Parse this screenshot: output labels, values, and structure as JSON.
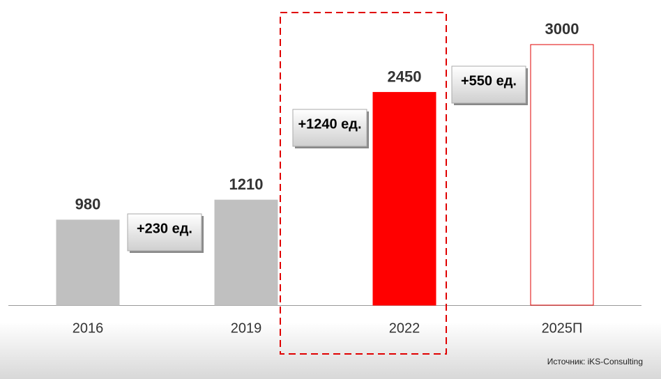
{
  "chart_data": {
    "type": "bar",
    "categories": [
      "2016",
      "2019",
      "2022",
      "2025П"
    ],
    "values": [
      980,
      1210,
      2450,
      3000
    ],
    "colors": [
      "#c0c0c0",
      "#c0c0c0",
      "#ff0000",
      "#ffffff"
    ],
    "edgecolors": [
      "#c0c0c0",
      "#c0c0c0",
      "#ff0000",
      "#e00000"
    ],
    "ylim": [
      0,
      3000
    ],
    "annotations": [
      "+230 ед.",
      "+1240 ед.",
      "+550 ед."
    ],
    "source": "Источник: iKS-Consulting"
  }
}
